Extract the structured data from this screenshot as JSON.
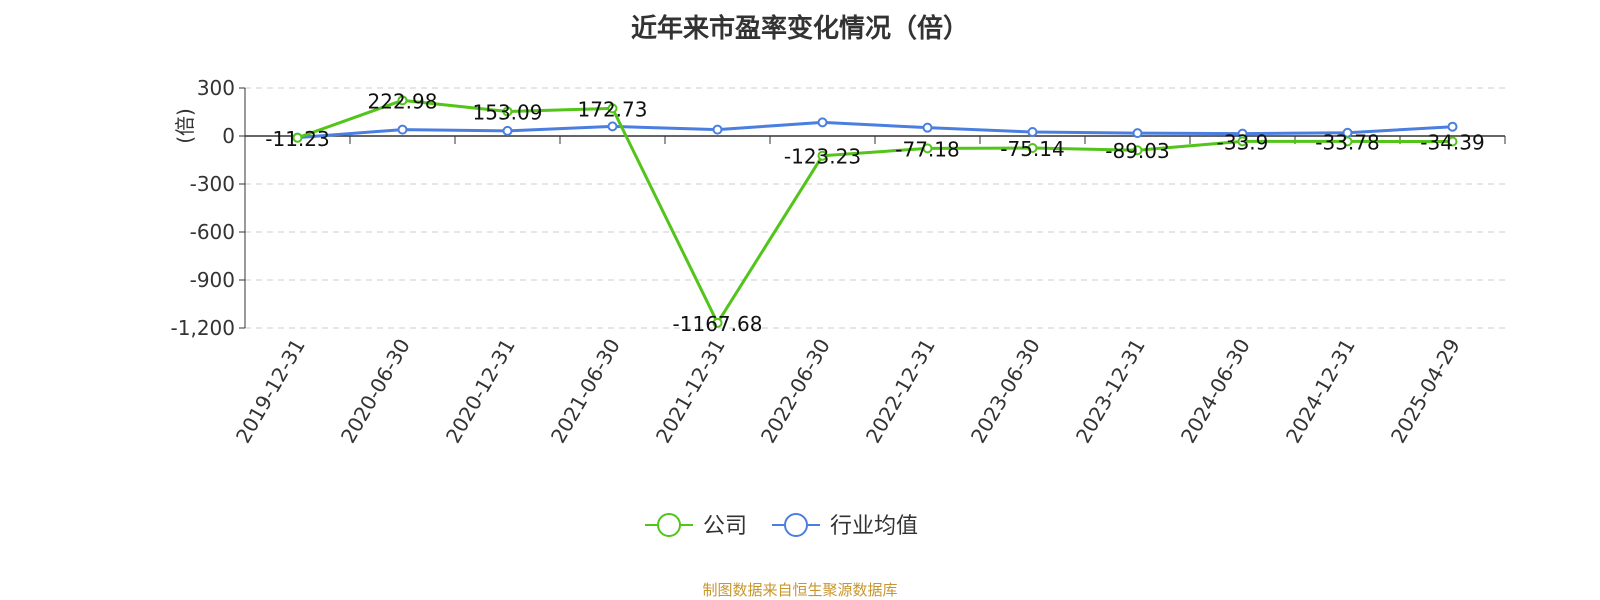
{
  "title": "近年来市盈率变化情况（倍）",
  "source_note": "制图数据来自恒生聚源数据库",
  "colors": {
    "company": "#52c41a",
    "industry": "#4a7fe0",
    "ylabel": "#e02020",
    "source": "#c8962e",
    "grid": "#cccccc",
    "axis": "#333333"
  },
  "chart_data": {
    "type": "line",
    "title": "近年来市盈率变化情况（倍）",
    "xlabel": "",
    "ylabel": "(倍)",
    "ylim": [
      -1200,
      300
    ],
    "yticks": [
      300,
      0,
      -300,
      -600,
      -900,
      -1200
    ],
    "ytick_labels": [
      "300",
      "0",
      "-300",
      "-600",
      "-900",
      "-1,200"
    ],
    "grid": true,
    "legend_position": "bottom-center",
    "categories": [
      "2019-12-31",
      "2020-06-30",
      "2020-12-31",
      "2021-06-30",
      "2021-12-31",
      "2022-06-30",
      "2022-12-31",
      "2023-06-30",
      "2023-12-31",
      "2024-06-30",
      "2024-12-31",
      "2025-04-29"
    ],
    "series": [
      {
        "name": "公司",
        "values": [
          -11.23,
          222.98,
          153.09,
          172.73,
          -1167.68,
          -123.23,
          -77.18,
          -75.14,
          -89.03,
          -33.9,
          -33.78,
          -34.39
        ],
        "labels": [
          "-11.23",
          "222.98",
          "153.09",
          "172.73",
          "-1167.68",
          "-123.23",
          "-77.18",
          "-75.14",
          "-89.03",
          "-33.9",
          "-33.78",
          "-34.39"
        ]
      },
      {
        "name": "行业均值",
        "values": [
          -10,
          40,
          32,
          60,
          40,
          85,
          52,
          25,
          18,
          15,
          20,
          58
        ]
      }
    ]
  }
}
